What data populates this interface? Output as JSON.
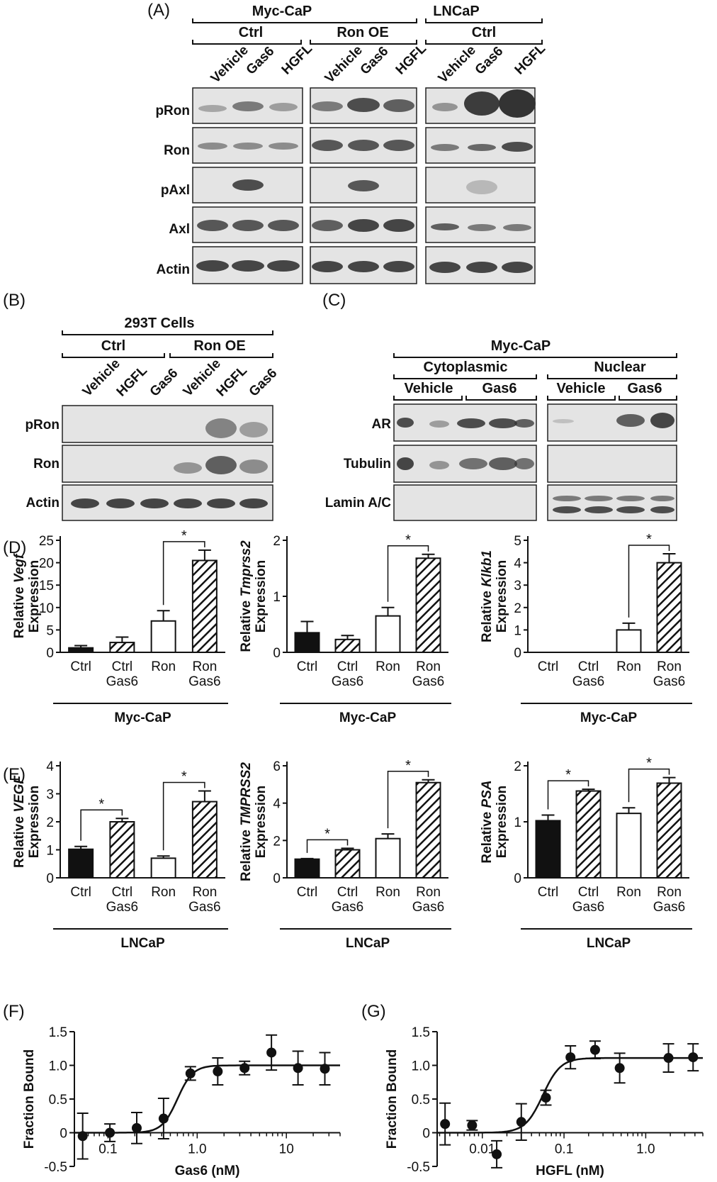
{
  "panels": {
    "A": {
      "label": "(A)",
      "groups": [
        {
          "name": "Myc-CaP",
          "subgroups": [
            "Ctrl",
            "Ron OE"
          ]
        },
        {
          "name": "LNCaP",
          "subgroups": [
            "Ctrl"
          ]
        }
      ],
      "lanes": [
        "Vehicle",
        "Gas6",
        "HGFL"
      ],
      "rows": [
        "pRon",
        "Ron",
        "pAxl",
        "Axl",
        "Actin"
      ]
    },
    "B": {
      "label": "(B)",
      "title": "293T Cells",
      "subgroups": [
        "Ctrl",
        "Ron OE"
      ],
      "lanes": [
        "Vehicle",
        "HGFL",
        "Gas6"
      ],
      "rows": [
        "pRon",
        "Ron",
        "Actin"
      ]
    },
    "C": {
      "label": "(C)",
      "title": "Myc-CaP",
      "fractions": [
        "Cytoplasmic",
        "Nuclear"
      ],
      "treatments": [
        "Vehicle",
        "Gas6"
      ],
      "rows": [
        "AR",
        "Tubulin",
        "Lamin A/C"
      ]
    },
    "D": {
      "label": "(D)",
      "cell": "Myc-CaP"
    },
    "E": {
      "label": "(E)",
      "cell": "LNCaP"
    },
    "F": {
      "label": "(F)"
    },
    "G": {
      "label": "(G)"
    }
  },
  "chart_data": [
    {
      "id": "D1",
      "type": "bar",
      "ylabel_prefix": "Relative ",
      "ylabel_gene": "Vegf",
      "ylabel2": "Expression",
      "categories": [
        "Ctrl",
        "Ctrl\nGas6",
        "Ron",
        "Ron\nGas6"
      ],
      "values": [
        1.0,
        2.2,
        7.0,
        20.5
      ],
      "errors": [
        0.5,
        1.2,
        2.3,
        2.3
      ],
      "ylim": [
        0,
        25
      ],
      "yticks": [
        "0",
        "5",
        "10",
        "15",
        "20",
        "25"
      ],
      "significance": [
        {
          "from": 2,
          "to": 3,
          "label": "*"
        }
      ],
      "xgroup": "Myc-CaP"
    },
    {
      "id": "D2",
      "type": "bar",
      "ylabel_prefix": "Relative ",
      "ylabel_gene": "Tmprss2",
      "ylabel2": "Expression",
      "categories": [
        "Ctrl",
        "Ctrl\nGas6",
        "Ron",
        "Ron\nGas6"
      ],
      "values": [
        0.35,
        0.23,
        0.65,
        1.68
      ],
      "errors": [
        0.2,
        0.07,
        0.15,
        0.07
      ],
      "ylim": [
        0,
        2
      ],
      "yticks": [
        "0",
        "1",
        "2"
      ],
      "significance": [
        {
          "from": 2,
          "to": 3,
          "label": "*"
        }
      ],
      "xgroup": "Myc-CaP"
    },
    {
      "id": "D3",
      "type": "bar",
      "ylabel_prefix": "Relative ",
      "ylabel_gene": "Klkb1",
      "ylabel2": "Expression",
      "categories": [
        "Ctrl",
        "Ctrl\nGas6",
        "Ron",
        "Ron\nGas6"
      ],
      "values": [
        0,
        0,
        1.0,
        4.0
      ],
      "errors": [
        0,
        0,
        0.3,
        0.4
      ],
      "ylim": [
        0,
        5
      ],
      "yticks": [
        "0",
        "1",
        "2",
        "3",
        "4",
        "5"
      ],
      "significance": [
        {
          "from": 2,
          "to": 3,
          "label": "*"
        }
      ],
      "xgroup": "Myc-CaP"
    },
    {
      "id": "E1",
      "type": "bar",
      "ylabel_prefix": "Relative ",
      "ylabel_gene": "VEGF",
      "ylabel2": "Expression",
      "categories": [
        "Ctrl",
        "Ctrl\nGas6",
        "Ron",
        "Ron\nGas6"
      ],
      "values": [
        1.02,
        2.0,
        0.7,
        2.72
      ],
      "errors": [
        0.1,
        0.12,
        0.08,
        0.38
      ],
      "ylim": [
        0,
        4
      ],
      "yticks": [
        "0",
        "1",
        "2",
        "3",
        "4"
      ],
      "significance": [
        {
          "from": 0,
          "to": 1,
          "label": "*"
        },
        {
          "from": 2,
          "to": 3,
          "label": "*"
        }
      ],
      "xgroup": "LNCaP"
    },
    {
      "id": "E2",
      "type": "bar",
      "ylabel_prefix": "Relative ",
      "ylabel_gene": "TMPRSS2",
      "ylabel2": "Expression",
      "categories": [
        "Ctrl",
        "Ctrl\nGas6",
        "Ron",
        "Ron\nGas6"
      ],
      "values": [
        1.0,
        1.5,
        2.1,
        5.1
      ],
      "errors": [
        0.03,
        0.08,
        0.25,
        0.15
      ],
      "ylim": [
        0,
        6
      ],
      "yticks": [
        "0",
        "2",
        "4",
        "6"
      ],
      "significance": [
        {
          "from": 0,
          "to": 1,
          "label": "*"
        },
        {
          "from": 2,
          "to": 3,
          "label": "*"
        }
      ],
      "xgroup": "LNCaP"
    },
    {
      "id": "E3",
      "type": "bar",
      "ylabel_prefix": "Relative ",
      "ylabel_gene": "PSA",
      "ylabel2": "Expression",
      "categories": [
        "Ctrl",
        "Ctrl\nGas6",
        "Ron",
        "Ron\nGas6"
      ],
      "values": [
        1.02,
        1.55,
        1.15,
        1.69
      ],
      "errors": [
        0.1,
        0.03,
        0.1,
        0.1
      ],
      "ylim": [
        0,
        2
      ],
      "yticks": [
        "0",
        "1",
        "2"
      ],
      "significance": [
        {
          "from": 0,
          "to": 1,
          "label": "*"
        },
        {
          "from": 2,
          "to": 3,
          "label": "*"
        }
      ],
      "xgroup": "LNCaP"
    },
    {
      "id": "F",
      "type": "scatter",
      "xscale": "log",
      "xlabel": "Gas6 (nM)",
      "ylabel": "Fraction Bound",
      "xlim": [
        0.042,
        40
      ],
      "ylim": [
        -0.5,
        1.5
      ],
      "yticks": [
        "-0.5",
        "0",
        "0.5",
        "1.0",
        "1.5"
      ],
      "xticks": [
        {
          "v": 0.1,
          "label": "0.1"
        },
        {
          "v": 1,
          "label": "1.0"
        },
        {
          "v": 10,
          "label": "10"
        }
      ],
      "x": [
        0.052,
        0.105,
        0.21,
        0.42,
        0.84,
        1.7,
        3.4,
        6.8,
        13.5,
        27
      ],
      "y": [
        -0.05,
        0.0,
        0.07,
        0.21,
        0.88,
        0.91,
        0.96,
        1.19,
        0.96,
        0.95
      ],
      "yerr": [
        0.34,
        0.13,
        0.23,
        0.3,
        0.1,
        0.2,
        0.1,
        0.26,
        0.25,
        0.24
      ],
      "fit": {
        "bottom": 0,
        "top": 1.0,
        "ec50": 0.6,
        "hill": 5
      }
    },
    {
      "id": "G",
      "type": "scatter",
      "xscale": "log",
      "xlabel": "HGFL (nM)",
      "ylabel": "Fraction Bound",
      "xlim": [
        0.0028,
        5
      ],
      "ylim": [
        -0.5,
        1.5
      ],
      "yticks": [
        "-0.5",
        "0",
        "0.5",
        "1.0",
        "1.5"
      ],
      "xticks": [
        {
          "v": 0.01,
          "label": "0.01"
        },
        {
          "v": 0.1,
          "label": "0.1"
        },
        {
          "v": 1,
          "label": "1.0"
        }
      ],
      "x": [
        0.0035,
        0.0075,
        0.015,
        0.03,
        0.06,
        0.12,
        0.24,
        0.48,
        1.9,
        3.8
      ],
      "y": [
        0.13,
        0.11,
        -0.32,
        0.16,
        0.52,
        1.12,
        1.23,
        0.96,
        1.11,
        1.12
      ],
      "yerr": [
        0.31,
        0.07,
        0.2,
        0.27,
        0.11,
        0.17,
        0.13,
        0.22,
        0.21,
        0.2
      ],
      "fit": {
        "bottom": 0,
        "top": 1.11,
        "ec50": 0.055,
        "hill": 4
      }
    }
  ]
}
